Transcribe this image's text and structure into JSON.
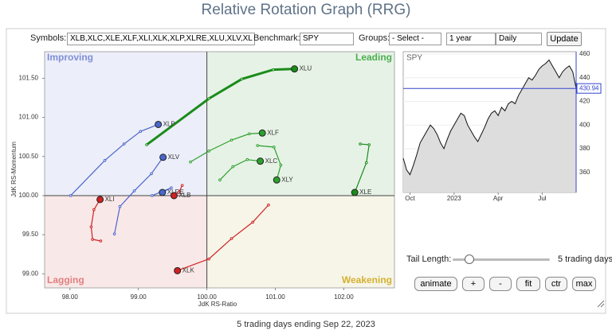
{
  "header": {
    "title": "Relative Rotation Graph (RRG)"
  },
  "controls": {
    "symbols_label": "Symbols:",
    "symbols_value": "XLB,XLC,XLE,XLF,XLI,XLK,XLP,XLRE,XLU,XLV,XL",
    "benchmark_label": "Benchmark:",
    "benchmark_value": "SPY",
    "groups_label": "Groups:",
    "groups_value": "- Select -",
    "period": "1 year",
    "interval": "Daily",
    "update": "Update",
    "tail_label": "Tail Length:",
    "tail_value": "5 trading days",
    "buttons": [
      "animate",
      "+",
      "-",
      "fit",
      "ctr",
      "max"
    ]
  },
  "chart_data": [
    {
      "type": "scatter",
      "x_label": "JdK RS-Ratio",
      "y_label": "JdK RS-Momentum",
      "quadrants": [
        "Improving",
        "Leading",
        "Lagging",
        "Weakening"
      ],
      "origin": [
        100,
        100
      ],
      "xlim": [
        97.63,
        102.74
      ],
      "ylim": [
        98.82,
        101.84
      ],
      "xticks": [
        {
          "value": 98,
          "label": "98.00"
        },
        {
          "value": 99,
          "label": "99.00"
        },
        {
          "value": 100,
          "label": "100.00"
        },
        {
          "value": 101,
          "label": "101.00"
        },
        {
          "value": 102,
          "label": "102.00"
        }
      ],
      "yticks": [
        {
          "value": 99,
          "label": "99.00"
        },
        {
          "value": 99.5,
          "label": "99.50"
        },
        {
          "value": 100,
          "label": "100.00"
        },
        {
          "value": 100.5,
          "label": "100.50"
        },
        {
          "value": 101,
          "label": "101.00"
        },
        {
          "value": 101.5,
          "label": "101.50"
        }
      ],
      "series": [
        {
          "name": "XLU",
          "color": "#1a8c1a",
          "x": [
            99.12,
            100.03,
            100.51,
            100.97,
            101.28
          ],
          "values": [
            100.65,
            101.24,
            101.49,
            101.61,
            101.62
          ]
        },
        {
          "name": "XLF",
          "color": "#2ca02c",
          "x": [
            99.76,
            100.03,
            100.36,
            100.62,
            100.81
          ],
          "values": [
            100.43,
            100.57,
            100.71,
            100.79,
            100.8
          ]
        },
        {
          "name": "XLC",
          "color": "#2ca02c",
          "x": [
            100.19,
            100.38,
            100.59,
            100.78
          ],
          "values": [
            100.2,
            100.37,
            100.46,
            100.44
          ]
        },
        {
          "name": "XLY",
          "color": "#2ca02c",
          "x": [
            100.74,
            100.98,
            101.08,
            101.02
          ],
          "values": [
            100.64,
            100.62,
            100.39,
            100.2
          ]
        },
        {
          "name": "XLE",
          "color": "#1a8c1a",
          "x": [
            102.24,
            102.37,
            102.33,
            102.16
          ],
          "values": [
            100.66,
            100.65,
            100.42,
            100.04
          ]
        },
        {
          "name": "XLP",
          "color": "#4a66cc",
          "x": [
            98.01,
            98.51,
            98.79,
            99.03,
            99.29
          ],
          "values": [
            100.0,
            100.45,
            100.66,
            100.82,
            100.91
          ]
        },
        {
          "name": "XLV",
          "color": "#4a66cc",
          "x": [
            98.65,
            98.73,
            98.94,
            99.19,
            99.36
          ],
          "values": [
            99.51,
            99.86,
            100.06,
            100.28,
            100.49
          ]
        },
        {
          "name": "XLRE",
          "color": "#4a66cc",
          "x": [
            99.2,
            99.48,
            99.35
          ],
          "values": [
            100.0,
            100.1,
            100.04
          ]
        },
        {
          "name": "XLB",
          "color": "#d02020",
          "x": [
            99.64,
            99.59,
            99.52
          ],
          "values": [
            100.13,
            100.04,
            100.0
          ]
        },
        {
          "name": "XLI",
          "color": "#d02020",
          "x": [
            98.45,
            98.33,
            98.31,
            98.35,
            98.44
          ],
          "values": [
            99.42,
            99.44,
            99.6,
            99.82,
            99.95
          ]
        },
        {
          "name": "XLK",
          "color": "#d02020",
          "x": [
            100.9,
            100.67,
            100.36,
            100.03,
            99.57
          ],
          "values": [
            99.88,
            99.66,
            99.45,
            99.19,
            99.04
          ]
        }
      ]
    },
    {
      "type": "line",
      "title": "SPY",
      "color": "#111111",
      "values": [
        372,
        362,
        358,
        366,
        375,
        385,
        390,
        395,
        400,
        397,
        392,
        385,
        380,
        388,
        395,
        400,
        405,
        410,
        408,
        400,
        395,
        390,
        386,
        392,
        398,
        405,
        410,
        412,
        408,
        415,
        412,
        418,
        420,
        418,
        425,
        430,
        435,
        440,
        438,
        442,
        447,
        450,
        452,
        455,
        450,
        445,
        440,
        445,
        448,
        450,
        445,
        430.94
      ],
      "ylim": [
        343,
        462
      ],
      "yticks": [
        360,
        380,
        400,
        420,
        440,
        460
      ],
      "xticks": [
        {
          "value": 2,
          "label": "Oct"
        },
        {
          "value": 15,
          "label": "2023"
        },
        {
          "value": 28,
          "label": "Apr"
        },
        {
          "value": 41,
          "label": "Jul"
        }
      ]
    }
  ],
  "footer": "5 trading days ending Sep 22, 2023"
}
